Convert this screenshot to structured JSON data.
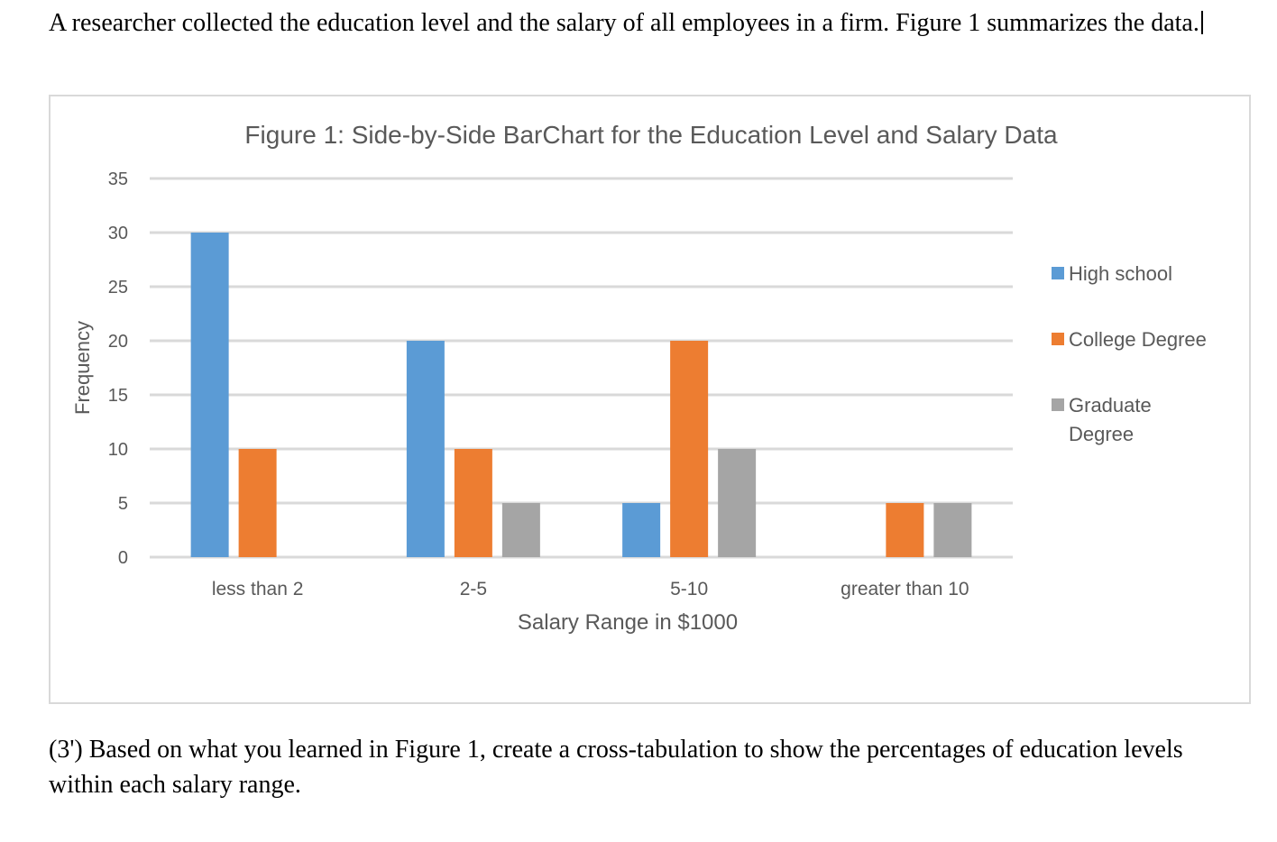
{
  "intro_text": "A researcher collected the education level and the salary of all employees in a firm. Figure 1 summarizes the data.",
  "question_text": "(3') Based on what you learned in Figure 1, create a cross-tabulation to show the percentages of education levels within each salary range.",
  "chart_data": {
    "type": "bar",
    "title": "Figure 1: Side-by-Side BarChart for the Education Level and Salary Data",
    "xlabel": "Salary Range in $1000",
    "ylabel": "Frequency",
    "ylim": [
      0,
      35
    ],
    "yticks": [
      0,
      5,
      10,
      15,
      20,
      25,
      30,
      35
    ],
    "grid": true,
    "legend_position": "right",
    "categories": [
      "less than 2",
      "2-5",
      "5-10",
      "greater than 10"
    ],
    "series": [
      {
        "name": "High school",
        "color": "#5b9bd5",
        "values": [
          30,
          20,
          5,
          0
        ]
      },
      {
        "name": "College Degree",
        "color": "#ed7d31",
        "values": [
          10,
          10,
          20,
          5
        ]
      },
      {
        "name": "Graduate Degree",
        "legend_lines": [
          "Graduate",
          "Degree"
        ],
        "color": "#a5a5a5",
        "values": [
          0,
          5,
          10,
          5
        ]
      }
    ]
  }
}
